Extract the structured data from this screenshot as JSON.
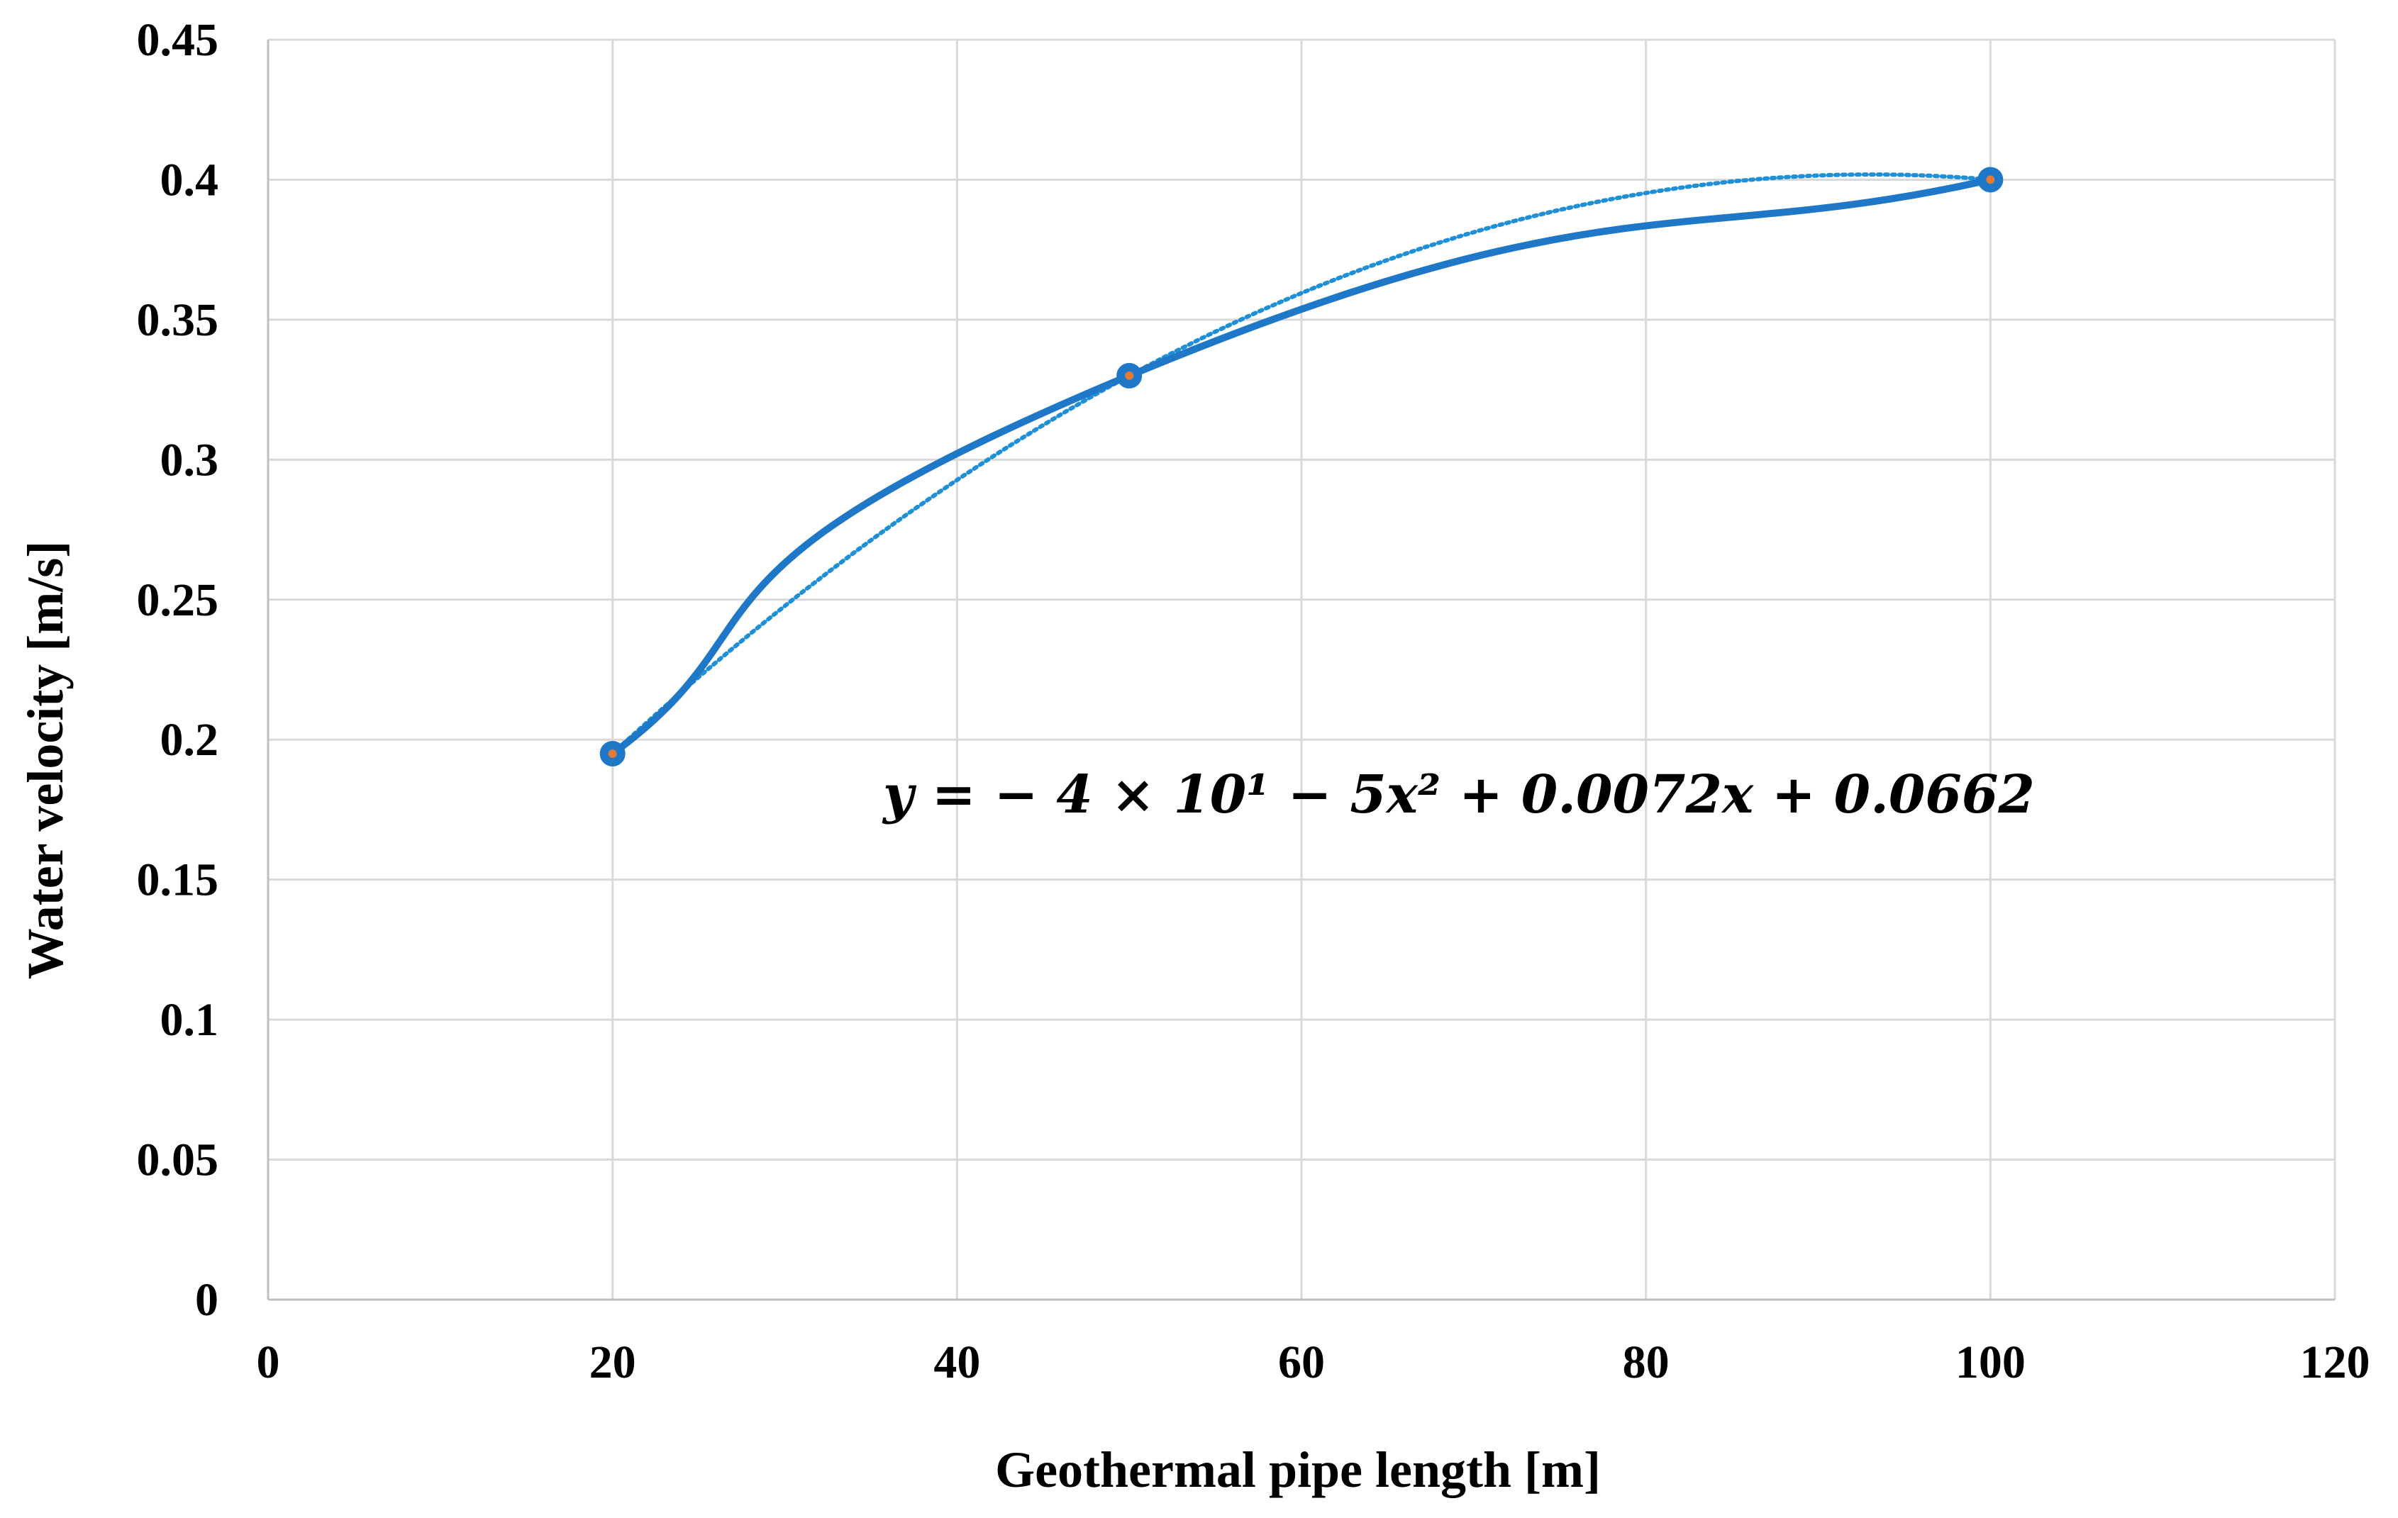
{
  "chart_data": {
    "type": "scatter",
    "xlabel": "Geothermal pipe length [m]",
    "ylabel": "Water velocity [m/s]",
    "xlim": [
      0,
      120
    ],
    "ylim": [
      0,
      0.45
    ],
    "xticks": [
      0,
      20,
      40,
      60,
      80,
      100,
      120
    ],
    "yticks": [
      0,
      0.05,
      0.1,
      0.15,
      0.2,
      0.25,
      0.3,
      0.35,
      0.4,
      0.45
    ],
    "xtick_labels": [
      "0",
      "20",
      "40",
      "60",
      "80",
      "100",
      "120"
    ],
    "ytick_labels": [
      "0",
      "0.05",
      "0.1",
      "0.15",
      "0.2",
      "0.25",
      "0.3",
      "0.35",
      "0.4",
      "0.45"
    ],
    "grid": true,
    "legend": "none",
    "series": [
      {
        "x": [
          20,
          50,
          100
        ],
        "y": [
          0.195,
          0.33,
          0.4
        ],
        "line": "smooth-solid",
        "markers": true,
        "color": "#1f77c8",
        "marker_center_color": "#e07b39"
      }
    ],
    "trendline": {
      "kind": "polynomial-2",
      "style": "dotted",
      "color": "#1f8fd6",
      "coefficients": {
        "a": -4e-05,
        "b": 0.0072,
        "c": 0.0662
      },
      "equation_text": "y = − 4 × 10¹ − 5x² + 0.0072x + 0.0662"
    }
  }
}
